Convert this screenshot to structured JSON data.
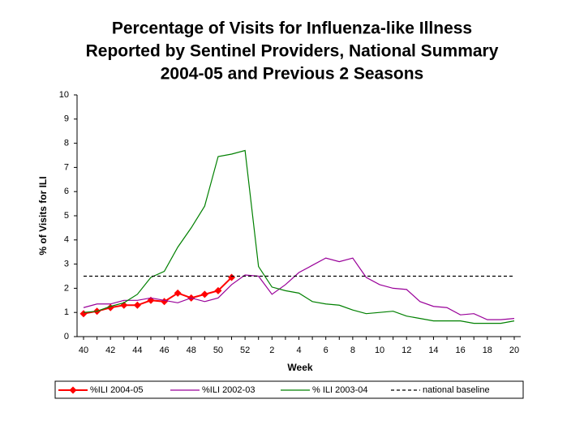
{
  "chart_data": {
    "type": "line",
    "title": [
      "Percentage of Visits for Influenza-like Illness",
      "Reported by Sentinel Providers, National Summary",
      "2004-05 and Previous 2 Seasons"
    ],
    "xlabel": "Week",
    "ylabel": "% of Visits for ILI",
    "categories": [
      "40",
      null,
      "42",
      null,
      "44",
      null,
      "46",
      null,
      "48",
      null,
      "50",
      null,
      "52",
      null,
      "2",
      null,
      "4",
      null,
      "6",
      null,
      "8",
      null,
      "10",
      null,
      "12",
      null,
      "14",
      null,
      "16",
      null,
      "18",
      null,
      "20"
    ],
    "ylim": [
      0,
      10
    ],
    "yticks": [
      0,
      1,
      2,
      3,
      4,
      5,
      6,
      7,
      8,
      9,
      10
    ],
    "legend": "bottom",
    "series": [
      {
        "name": "%ILI 2004-05",
        "color": "#ff0000",
        "marker": "diamond",
        "values": [
          0.95,
          1.05,
          1.2,
          1.3,
          1.3,
          1.5,
          1.45,
          1.8,
          1.6,
          1.75,
          1.9,
          2.45,
          null,
          null,
          null,
          null,
          null,
          null,
          null,
          null,
          null,
          null,
          null,
          null,
          null,
          null,
          null,
          null,
          null,
          null,
          null,
          null,
          null
        ]
      },
      {
        "name": "%ILI 2002-03",
        "color": "#990099",
        "values": [
          1.2,
          1.35,
          1.35,
          1.5,
          1.5,
          1.6,
          1.5,
          1.4,
          1.6,
          1.45,
          1.6,
          2.15,
          2.55,
          2.5,
          1.75,
          2.15,
          2.65,
          2.95,
          3.25,
          3.1,
          3.25,
          2.45,
          2.15,
          2.0,
          1.95,
          1.45,
          1.25,
          1.2,
          0.9,
          0.95,
          0.7,
          0.7,
          0.75
        ]
      },
      {
        "name": "% ILI 2003-04",
        "color": "#008000",
        "values": [
          1.0,
          1.05,
          1.25,
          1.4,
          1.75,
          2.45,
          2.7,
          3.7,
          4.5,
          5.4,
          7.45,
          7.55,
          7.7,
          2.9,
          2.05,
          1.9,
          1.8,
          1.45,
          1.35,
          1.3,
          1.1,
          0.95,
          1.0,
          1.05,
          0.85,
          0.75,
          0.65,
          0.65,
          0.65,
          0.55,
          0.55,
          0.55,
          0.65
        ]
      },
      {
        "name": "national baseline",
        "color": "#000000",
        "dash": "4,3",
        "values": [
          2.5,
          2.5,
          2.5,
          2.5,
          2.5,
          2.5,
          2.5,
          2.5,
          2.5,
          2.5,
          2.5,
          2.5,
          2.5,
          2.5,
          2.5,
          2.5,
          2.5,
          2.5,
          2.5,
          2.5,
          2.5,
          2.5,
          2.5,
          2.5,
          2.5,
          2.5,
          2.5,
          2.5,
          2.5,
          2.5,
          2.5,
          2.5,
          2.5
        ]
      }
    ]
  }
}
